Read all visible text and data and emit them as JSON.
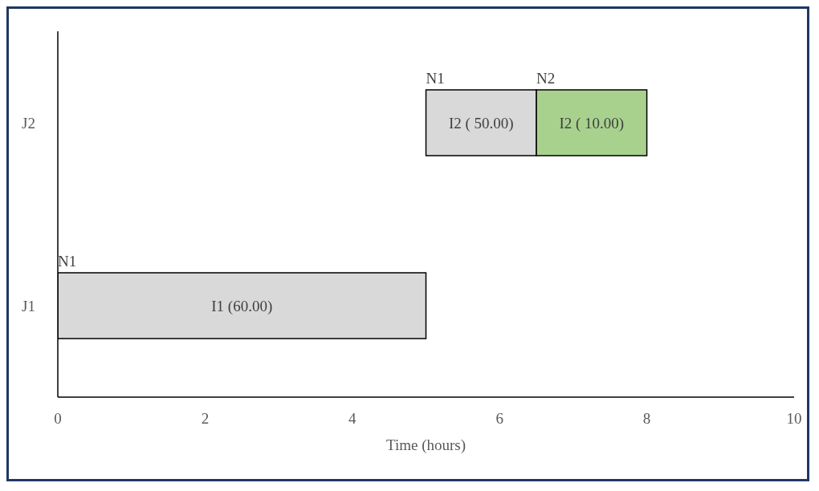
{
  "chart_data": {
    "type": "bar",
    "orientation": "horizontal",
    "xlabel": "Time (hours)",
    "categories": [
      "J2",
      "J1"
    ],
    "series": [
      {
        "name": "N1",
        "color": "#d9d9d9",
        "base": [
          5,
          0
        ],
        "values": [
          1.5,
          5
        ],
        "value_labels": [
          "I2 ( 50.00)",
          "I1 (60.00)"
        ]
      },
      {
        "name": "N2",
        "color": "#a9d18e",
        "base": [
          6.5,
          null
        ],
        "values": [
          1.5,
          null
        ],
        "value_labels": [
          "I2 ( 10.00)",
          null
        ]
      }
    ],
    "xlim": [
      0,
      10
    ],
    "xticks": [
      0,
      2,
      4,
      6,
      8,
      10
    ],
    "grid": false,
    "legend": false
  }
}
